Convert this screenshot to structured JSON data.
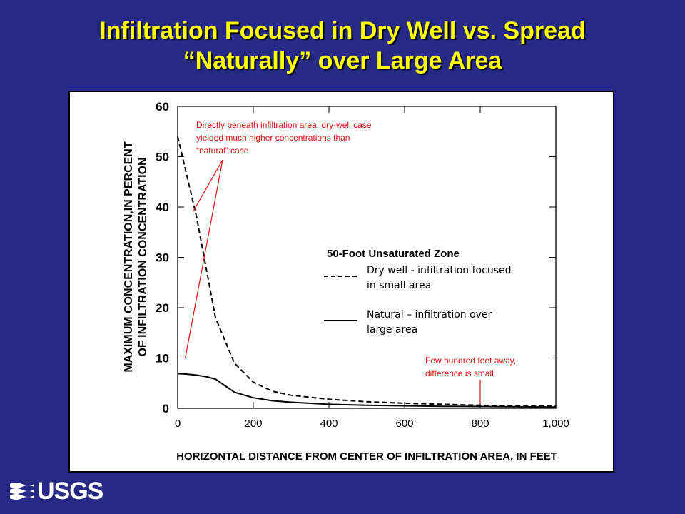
{
  "slide": {
    "title_line1": "Infiltration Focused in Dry Well vs. Spread",
    "title_line2": "“Naturally” over Large Area",
    "title_color": "#ffff00",
    "background_color": "#262a86",
    "logo_text": "USGS",
    "logo_icon": "usgs-wave-icon"
  },
  "chart_data": {
    "type": "line",
    "ylabel_line1": "MAXIMUM CONCENTRATION,IN PERCENT",
    "ylabel_line2": "OF INFILTRATION CONCENTRATION",
    "xlabel": "HORIZONTAL DISTANCE FROM CENTER OF INFILTRATION AREA, IN FEET",
    "xlim": [
      0,
      1000
    ],
    "ylim": [
      0,
      60
    ],
    "x_ticks": [
      0,
      200,
      400,
      600,
      800,
      1000
    ],
    "x_tick_labels": [
      "0",
      "200",
      "400",
      "600",
      "800",
      "1,000"
    ],
    "y_ticks": [
      0,
      10,
      20,
      30,
      40,
      50,
      60
    ],
    "y_tick_labels": [
      "0",
      "10",
      "20",
      "30",
      "40",
      "50",
      "60"
    ],
    "grid": false,
    "legend": {
      "title": "50-Foot Unsaturated Zone",
      "placement": "center-right",
      "entries": [
        {
          "label_line1": "Dry well - infiltration focused",
          "label_line2": "in small area",
          "style": "dashed"
        },
        {
          "label_line1": "Natural – infiltration over",
          "label_line2": "large area",
          "style": "solid"
        }
      ]
    },
    "series": [
      {
        "name": "Dry well - infiltration focused in small area",
        "style": "dashed",
        "x": [
          0,
          50,
          100,
          150,
          200,
          250,
          300,
          400,
          500,
          600,
          700,
          800,
          900,
          1000
        ],
        "y": [
          54,
          38,
          18,
          9,
          5.2,
          3.4,
          2.6,
          1.8,
          1.3,
          1.0,
          0.8,
          0.6,
          0.5,
          0.4
        ]
      },
      {
        "name": "Natural – infiltration over large area",
        "style": "solid",
        "x": [
          0,
          25,
          50,
          75,
          100,
          150,
          200,
          250,
          300,
          400,
          500,
          600,
          700,
          800,
          900,
          1000
        ],
        "y": [
          6.9,
          6.8,
          6.6,
          6.3,
          5.8,
          3.2,
          2.1,
          1.5,
          1.2,
          0.8,
          0.6,
          0.5,
          0.4,
          0.35,
          0.3,
          0.25
        ]
      }
    ],
    "annotations": [
      {
        "lines": [
          "Directly beneath infiltration area, dry-well case",
          "yielded much higher concentrations than",
          "“natural” case"
        ],
        "color": "#e01010",
        "pointer_targets": [
          {
            "x": 40,
            "y": 39
          },
          {
            "x": 20,
            "y": 10
          }
        ]
      },
      {
        "lines": [
          "Few hundred feet away,",
          "difference is small"
        ],
        "color": "#e01010",
        "pointer_targets": [
          {
            "x": 800,
            "y": 1
          }
        ]
      }
    ]
  }
}
